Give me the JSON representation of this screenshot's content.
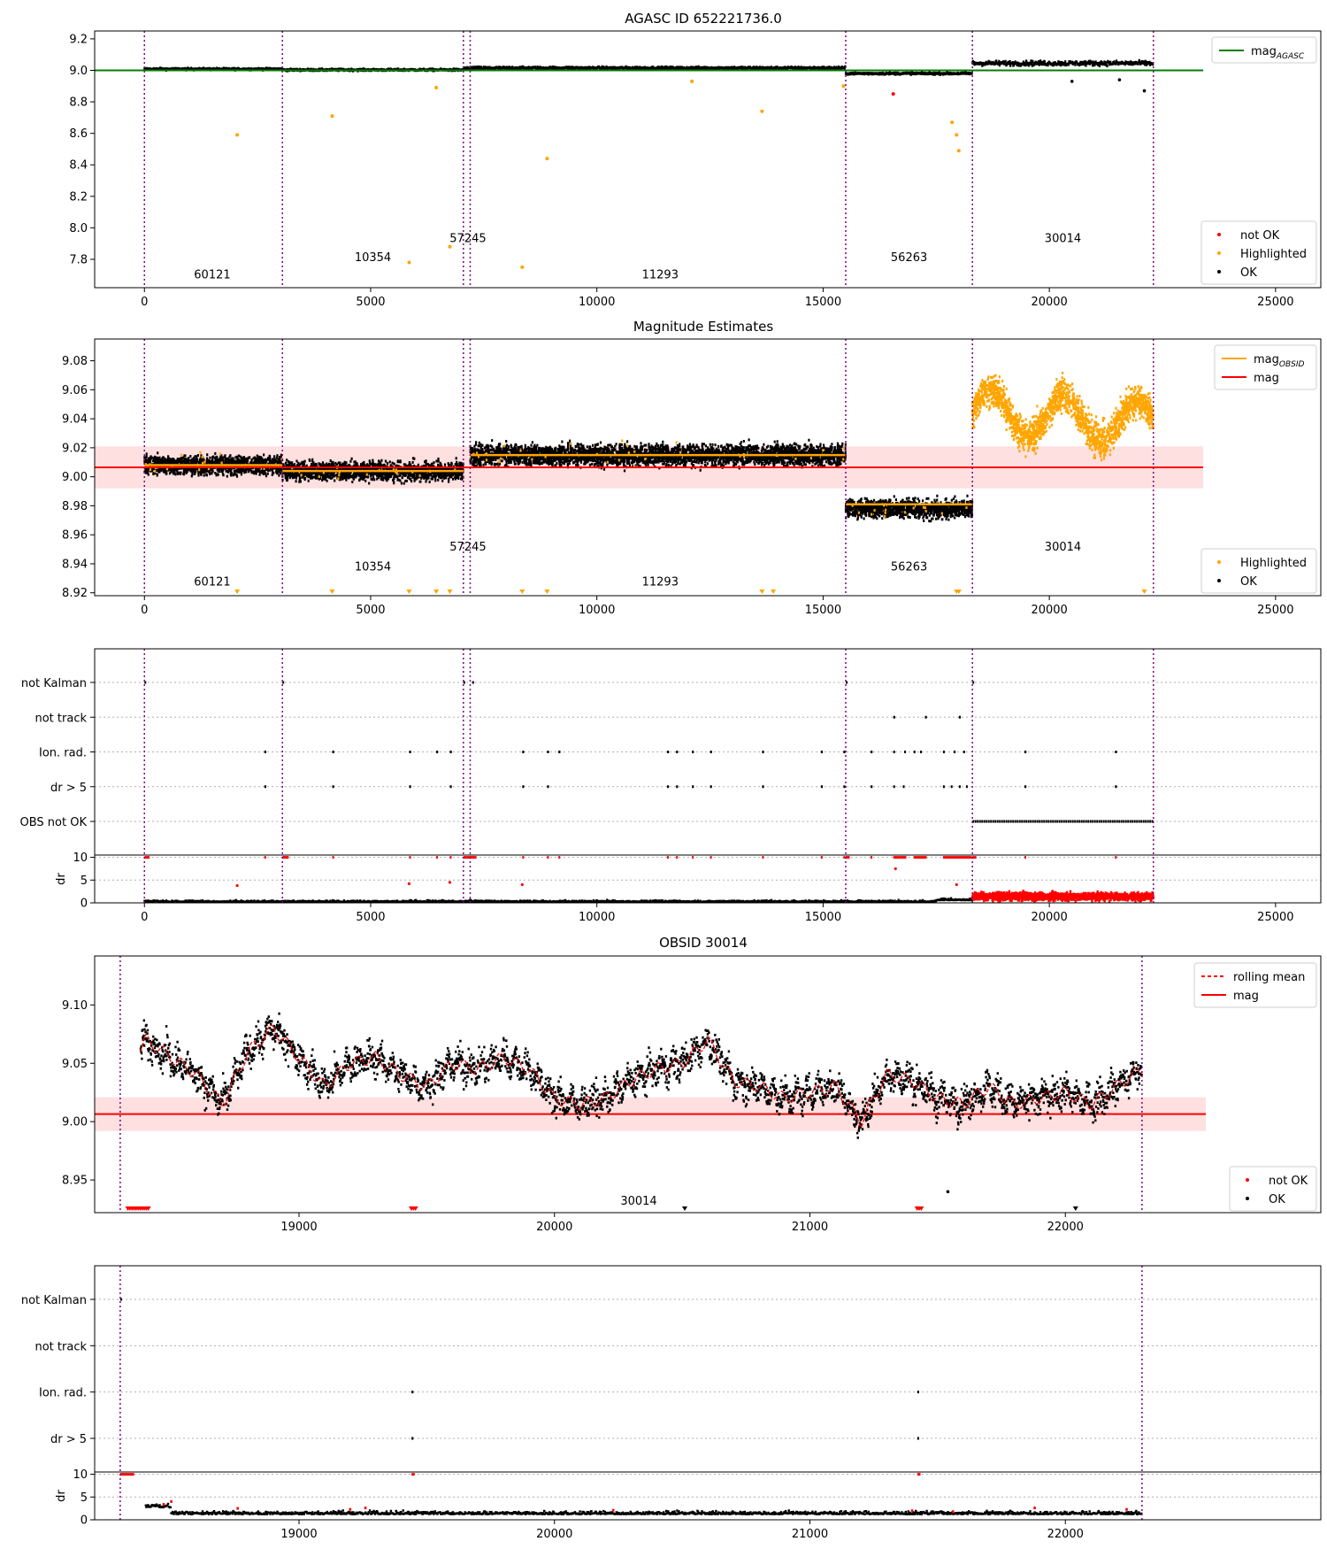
{
  "chart_data": [
    {
      "type": "scatter",
      "title": "AGASC ID 652221736.0",
      "xlabel": "",
      "ylabel": "",
      "xlim": [
        -1100,
        26000
      ],
      "ylim": [
        7.62,
        9.25
      ],
      "xticks": [
        0,
        5000,
        10000,
        15000,
        20000,
        25000
      ],
      "yticks": [
        7.8,
        8.0,
        8.2,
        8.4,
        8.6,
        8.8,
        9.0,
        9.2
      ],
      "grid": false,
      "vlines": [
        0,
        3050,
        7050,
        7200,
        15500,
        18300,
        22300
      ],
      "obsid_labels": [
        {
          "text": "60121",
          "x": 1500,
          "y": 7.68
        },
        {
          "text": "10354",
          "x": 5050,
          "y": 7.79
        },
        {
          "text": "57245",
          "x": 7150,
          "y": 7.91
        },
        {
          "text": "11293",
          "x": 11400,
          "y": 7.68
        },
        {
          "text": "56263",
          "x": 16900,
          "y": 7.79
        },
        {
          "text": "30014",
          "x": 20300,
          "y": 7.91
        }
      ],
      "segments": [
        {
          "x0": 0,
          "x1": 3050,
          "level": 9.008,
          "spread": 0.008
        },
        {
          "x0": 3050,
          "x1": 7050,
          "level": 9.003,
          "spread": 0.008
        },
        {
          "x0": 7050,
          "x1": 7200,
          "level": 9.01,
          "spread": 0.01
        },
        {
          "x0": 7200,
          "x1": 15500,
          "level": 9.015,
          "spread": 0.01
        },
        {
          "x0": 15500,
          "x1": 18300,
          "level": 8.98,
          "spread": 0.008
        },
        {
          "x0": 18300,
          "x1": 22300,
          "level": 9.045,
          "spread": 0.02
        }
      ],
      "reference_line": {
        "name": "mag_AGASC",
        "value": 9.0,
        "x0": -1100,
        "x1": 23400,
        "color": "#008000"
      },
      "highlighted_points": [
        {
          "x": 2050,
          "y": 8.59
        },
        {
          "x": 4150,
          "y": 8.71
        },
        {
          "x": 5850,
          "y": 7.78
        },
        {
          "x": 6450,
          "y": 8.89
        },
        {
          "x": 6750,
          "y": 7.88
        },
        {
          "x": 8350,
          "y": 7.75
        },
        {
          "x": 8900,
          "y": 8.44
        },
        {
          "x": 13650,
          "y": 8.74
        },
        {
          "x": 12100,
          "y": 8.93
        },
        {
          "x": 15450,
          "y": 8.9
        },
        {
          "x": 17950,
          "y": 8.59
        },
        {
          "x": 18000,
          "y": 8.49
        },
        {
          "x": 17850,
          "y": 8.67
        }
      ],
      "not_ok_points": [
        {
          "x": 16550,
          "y": 8.85
        }
      ],
      "ok_outliers": [
        {
          "x": 20500,
          "y": 8.93
        },
        {
          "x": 21550,
          "y": 8.94
        },
        {
          "x": 22100,
          "y": 8.87
        }
      ],
      "series": [
        {
          "name": "not OK",
          "color": "#ff0000"
        },
        {
          "name": "Highlighted",
          "color": "#ffa500"
        },
        {
          "name": "OK",
          "color": "#000000"
        }
      ],
      "legend_upper": "top-right",
      "legend_lower": "bottom-right"
    },
    {
      "type": "scatter",
      "title": "Magnitude Estimates",
      "xlabel": "",
      "ylabel": "",
      "xlim": [
        -1100,
        26000
      ],
      "ylim": [
        8.918,
        9.095
      ],
      "xticks": [
        0,
        5000,
        10000,
        15000,
        20000,
        25000
      ],
      "yticks": [
        8.92,
        8.94,
        8.96,
        8.98,
        9.0,
        9.02,
        9.04,
        9.06,
        9.08
      ],
      "grid": false,
      "vlines": [
        0,
        3050,
        7050,
        7200,
        15500,
        18300,
        22300
      ],
      "obsid_labels": [
        {
          "text": "60121",
          "x": 1500,
          "y": 8.925
        },
        {
          "text": "10354",
          "x": 5050,
          "y": 8.9355
        },
        {
          "text": "57245",
          "x": 7150,
          "y": 8.949
        },
        {
          "text": "11293",
          "x": 11400,
          "y": 8.925
        },
        {
          "text": "56263",
          "x": 16900,
          "y": 8.9355
        },
        {
          "text": "30014",
          "x": 20300,
          "y": 8.949
        }
      ],
      "mag": {
        "value": 9.0065,
        "band": [
          8.992,
          9.021
        ],
        "x0": -1100,
        "x1": 23400
      },
      "mag_obsid": [
        {
          "x0": 0,
          "x1": 3050,
          "value": 9.008
        },
        {
          "x0": 3050,
          "x1": 7050,
          "value": 9.004
        },
        {
          "x0": 7200,
          "x1": 15500,
          "value": 9.015
        },
        {
          "x0": 15500,
          "x1": 18300,
          "value": 8.981
        }
      ],
      "segments": [
        {
          "x0": 0,
          "x1": 3050,
          "level": 9.008,
          "spread": 0.008,
          "color": "#000000"
        },
        {
          "x0": 3050,
          "x1": 7050,
          "level": 9.004,
          "spread": 0.008,
          "color": "#000000"
        },
        {
          "x0": 7200,
          "x1": 15500,
          "level": 9.015,
          "spread": 0.009,
          "color": "#000000"
        },
        {
          "x0": 15500,
          "x1": 18300,
          "level": 8.978,
          "spread": 0.008,
          "color": "#000000"
        },
        {
          "x0": 18300,
          "x1": 22300,
          "level": 9.045,
          "spread": 0.018,
          "color": "#ffa500"
        }
      ],
      "clipped_markers_x": [
        2050,
        4150,
        5850,
        6450,
        6750,
        8350,
        8900,
        13650,
        13900,
        17950,
        18000,
        22100
      ],
      "series": [
        {
          "name": "mag_OBSID",
          "color": "#ffa500"
        },
        {
          "name": "mag",
          "color": "#ff0000"
        },
        {
          "name": "Highlighted",
          "color": "#ffa500"
        },
        {
          "name": "OK",
          "color": "#000000"
        }
      ],
      "legend_upper": "top-right",
      "legend_lower": "bottom-right"
    },
    {
      "type": "scatter",
      "title": "",
      "xlim": [
        -1100,
        26000
      ],
      "xticks": [
        0,
        5000,
        10000,
        15000,
        20000,
        25000
      ],
      "flag_rows": [
        "not Kalman",
        "not track",
        "Ion. rad.",
        "dr > 5",
        "OBS not OK"
      ],
      "vlines": [
        0,
        3050,
        7050,
        7200,
        15500,
        18300,
        22300
      ],
      "flag_events": {
        "not Kalman": [
          [
            0,
            80
          ],
          [
            3050,
            3150
          ],
          [
            7050,
            7300
          ],
          [
            15500,
            15560
          ],
          [
            18300,
            18360
          ]
        ],
        "not track": [
          [
            16550,
            16560
          ],
          [
            17250,
            17260
          ],
          [
            18000,
            18010
          ]
        ],
        "Ion. rad.": [
          [
            2650,
            2660
          ],
          [
            4150,
            4160
          ],
          [
            5850,
            5860
          ],
          [
            6450,
            6460
          ],
          [
            6750,
            6760
          ],
          [
            8350,
            8360
          ],
          [
            8900,
            8910
          ],
          [
            9150,
            9160
          ],
          [
            11550,
            11560
          ],
          [
            11750,
            11760
          ],
          [
            12100,
            12110
          ],
          [
            12500,
            12510
          ],
          [
            13650,
            13660
          ],
          [
            14950,
            14960
          ],
          [
            15450,
            15460
          ],
          [
            16050,
            16060
          ],
          [
            16550,
            16800
          ],
          [
            17000,
            17250
          ],
          [
            17650,
            18250
          ],
          [
            19450,
            19460
          ],
          [
            21450,
            21460
          ]
        ],
        "dr > 5": [
          [
            2650,
            2660
          ],
          [
            4150,
            4160
          ],
          [
            5850,
            5860
          ],
          [
            6750,
            6760
          ],
          [
            8350,
            8360
          ],
          [
            8900,
            8910
          ],
          [
            11550,
            11560
          ],
          [
            11750,
            11760
          ],
          [
            12100,
            12110
          ],
          [
            12500,
            12510
          ],
          [
            13650,
            13660
          ],
          [
            14950,
            14960
          ],
          [
            15450,
            15460
          ],
          [
            16050,
            16060
          ],
          [
            16550,
            16800
          ],
          [
            17650,
            18250
          ],
          [
            19450,
            19460
          ],
          [
            21450,
            21460
          ]
        ],
        "OBS not OK": [
          [
            18300,
            22300
          ]
        ]
      },
      "dr": {
        "ylabel": "dr",
        "yticks": [
          0,
          5,
          10
        ],
        "ylim": [
          0,
          10.5
        ],
        "clip_value": 10
      }
    },
    {
      "type": "scatter",
      "title": "OBSID 30014",
      "xlabel": "",
      "ylabel": "",
      "xlim": [
        18200,
        23000
      ],
      "ylim": [
        8.922,
        9.142
      ],
      "xticks": [
        19000,
        20000,
        21000,
        22000
      ],
      "yticks": [
        8.95,
        9.0,
        9.05,
        9.1
      ],
      "grid": false,
      "vlines": [
        18300,
        22300
      ],
      "obsid_label": {
        "text": "30014",
        "x": 20330,
        "y": 8.929
      },
      "mag": {
        "value": 9.0065,
        "band": [
          8.992,
          9.021
        ],
        "x0": 18200,
        "x1": 22550
      },
      "rolling_mean_knots": [
        [
          18350,
          9.05
        ],
        [
          18400,
          9.07
        ],
        [
          18500,
          9.055
        ],
        [
          18600,
          9.04
        ],
        [
          18700,
          9.015
        ],
        [
          18800,
          9.06
        ],
        [
          18900,
          9.08
        ],
        [
          19000,
          9.055
        ],
        [
          19100,
          9.03
        ],
        [
          19200,
          9.05
        ],
        [
          19300,
          9.055
        ],
        [
          19400,
          9.04
        ],
        [
          19500,
          9.03
        ],
        [
          19600,
          9.05
        ],
        [
          19700,
          9.045
        ],
        [
          19800,
          9.055
        ],
        [
          19900,
          9.045
        ],
        [
          20000,
          9.02
        ],
        [
          20100,
          9.015
        ],
        [
          20200,
          9.02
        ],
        [
          20300,
          9.035
        ],
        [
          20400,
          9.045
        ],
        [
          20500,
          9.05
        ],
        [
          20600,
          9.07
        ],
        [
          20700,
          9.035
        ],
        [
          20800,
          9.03
        ],
        [
          20900,
          9.02
        ],
        [
          21000,
          9.025
        ],
        [
          21100,
          9.03
        ],
        [
          21200,
          9.0
        ],
        [
          21300,
          9.04
        ],
        [
          21400,
          9.035
        ],
        [
          21500,
          9.02
        ],
        [
          21600,
          9.015
        ],
        [
          21700,
          9.03
        ],
        [
          21800,
          9.015
        ],
        [
          21900,
          9.02
        ],
        [
          22000,
          9.025
        ],
        [
          22100,
          9.015
        ],
        [
          22200,
          9.03
        ],
        [
          22300,
          9.045
        ]
      ],
      "clipped_not_ok": [
        [
          18330,
          18410
        ],
        [
          19440,
          19460
        ],
        [
          21420,
          21440
        ]
      ],
      "clipped_ok": [
        [
          20510,
          20520
        ],
        [
          22040,
          22050
        ]
      ],
      "ok_outliers": [
        {
          "x": 21540,
          "y": 8.94
        }
      ],
      "series": [
        {
          "name": "rolling mean",
          "color": "#ff0000",
          "style": "dashed"
        },
        {
          "name": "mag",
          "color": "#ff0000"
        },
        {
          "name": "not OK",
          "color": "#ff0000"
        },
        {
          "name": "OK",
          "color": "#000000"
        }
      ],
      "legend_upper": "top-right",
      "legend_lower": "bottom-right"
    },
    {
      "type": "scatter",
      "title": "",
      "xlim": [
        18200,
        23000
      ],
      "xticks": [
        19000,
        20000,
        21000,
        22000
      ],
      "flag_rows": [
        "not Kalman",
        "not track",
        "Ion. rad.",
        "dr > 5"
      ],
      "vlines": [
        18300,
        22300
      ],
      "flag_events": {
        "not Kalman": [
          [
            18300,
            18350
          ]
        ],
        "not track": [],
        "Ion. rad.": [
          [
            19440,
            19450
          ],
          [
            21420,
            21430
          ]
        ],
        "dr > 5": [
          [
            19440,
            19450
          ],
          [
            21420,
            21430
          ]
        ]
      },
      "dr": {
        "ylabel": "dr",
        "yticks": [
          0,
          5,
          10
        ],
        "ylim": [
          0,
          10.5
        ],
        "clip_value": 10
      }
    }
  ]
}
